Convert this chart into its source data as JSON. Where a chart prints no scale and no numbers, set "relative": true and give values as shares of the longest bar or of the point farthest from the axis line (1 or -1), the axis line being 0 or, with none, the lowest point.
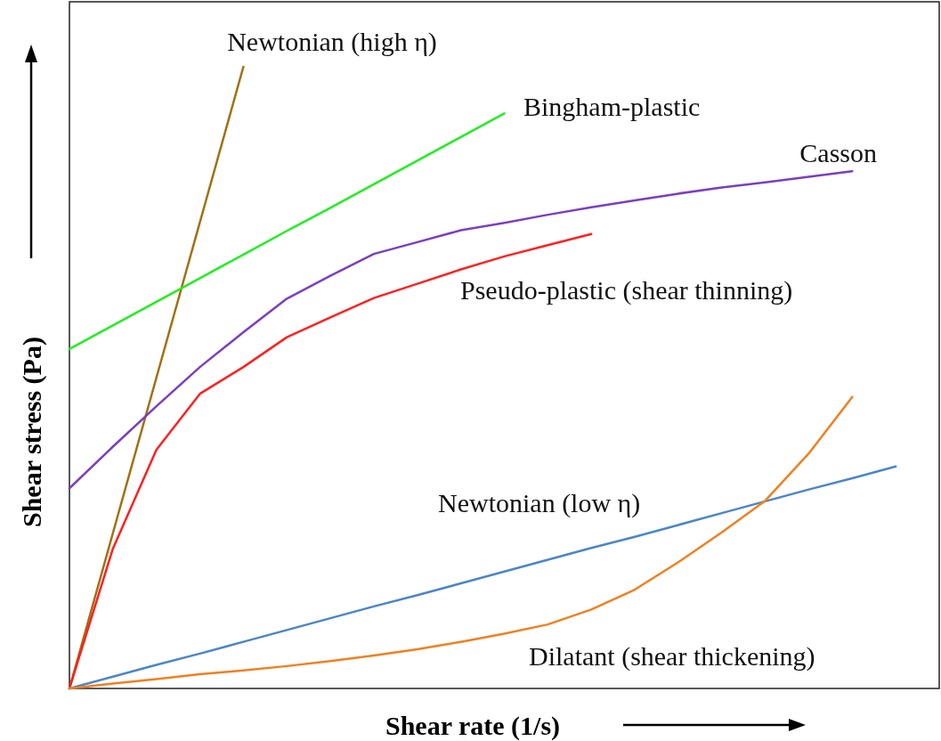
{
  "chart_data": {
    "type": "line",
    "relative": true,
    "xlabel": "Shear rate (1/s)",
    "ylabel": "Shear stress (Pa)",
    "marker": "none",
    "line_style": "solid",
    "categories": [
      null,
      null,
      null,
      null,
      null,
      null,
      null,
      null,
      null,
      null,
      null,
      null,
      null,
      null,
      null,
      null,
      null,
      null,
      null,
      null,
      null
    ],
    "series": [
      {
        "name": "Newtonian (high η)",
        "color": "#a0700f",
        "values": [
          0,
          0.25,
          0.5,
          0.75,
          1,
          null,
          null,
          null,
          null,
          null,
          null,
          null,
          null,
          null,
          null,
          null,
          null,
          null,
          null,
          null,
          null
        ]
      },
      {
        "name": "Bingham-plastic",
        "color": "#22ee22",
        "values": [
          0.546,
          0.584,
          0.622,
          0.66,
          0.698,
          0.736,
          0.773,
          0.811,
          0.849,
          0.887,
          0.925,
          null,
          null,
          null,
          null,
          null,
          null,
          null,
          null,
          null,
          null
        ]
      },
      {
        "name": "Casson",
        "color": "#7b3fbf",
        "values": [
          0.322,
          0.389,
          0.454,
          0.517,
          0.573,
          0.627,
          0.664,
          0.699,
          0.718,
          0.737,
          0.749,
          0.762,
          0.774,
          0.785,
          0.796,
          0.806,
          0.814,
          0.823,
          0.832,
          null,
          null
        ]
      },
      {
        "name": "Pseudo-plastic (shear thinning)",
        "color": "#ff2020",
        "values": [
          0,
          0.225,
          0.384,
          0.474,
          0.517,
          0.565,
          0.597,
          0.628,
          0.651,
          0.674,
          0.695,
          0.713,
          0.731,
          null,
          null,
          null,
          null,
          null,
          null,
          null,
          null
        ]
      },
      {
        "name": "Newtonian (low η)",
        "color": "#4a86c8",
        "values": [
          0,
          0.019,
          0.038,
          0.056,
          0.075,
          0.094,
          0.113,
          0.132,
          0.15,
          0.169,
          0.188,
          0.207,
          0.226,
          0.244,
          0.263,
          0.282,
          0.301,
          0.32,
          0.338,
          0.357,
          null
        ]
      },
      {
        "name": "Dilatant (shear thickening)",
        "color": "#f08020",
        "values": [
          0,
          0.008,
          0.015,
          0.023,
          0.029,
          0.036,
          0.044,
          0.053,
          0.063,
          0.075,
          0.088,
          0.103,
          0.127,
          0.159,
          0.203,
          0.251,
          0.302,
          0.378,
          0.469,
          null,
          null
        ]
      }
    ]
  }
}
